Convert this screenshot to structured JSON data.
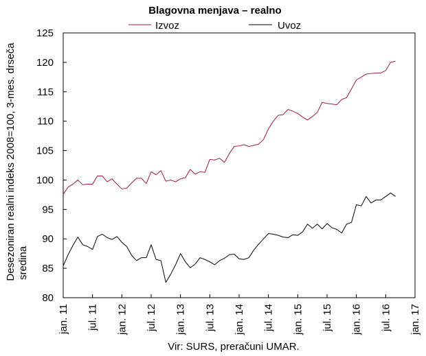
{
  "chart_data": {
    "type": "line",
    "title": "Blagovna menjava – realno",
    "ylabel_lines": [
      "Desezoniran realni indeks 2008=100, 3-mes. drseča",
      "sredina"
    ],
    "source": "Vir: SURS, preračuni UMAR.",
    "ylim": [
      80,
      125
    ],
    "yticks": [
      80,
      85,
      90,
      95,
      100,
      105,
      110,
      115,
      120,
      125
    ],
    "xlim": [
      0,
      72
    ],
    "xticks": [
      {
        "m": 0,
        "label": "jan. 11"
      },
      {
        "m": 6,
        "label": "jul. 11"
      },
      {
        "m": 12,
        "label": "jan. 12"
      },
      {
        "m": 18,
        "label": "jul. 12"
      },
      {
        "m": 24,
        "label": "jan. 13"
      },
      {
        "m": 30,
        "label": "jul. 13"
      },
      {
        "m": 36,
        "label": "jan. 14"
      },
      {
        "m": 42,
        "label": "jul. 14"
      },
      {
        "m": 48,
        "label": "jan. 15"
      },
      {
        "m": 54,
        "label": "jul. 15"
      },
      {
        "m": 60,
        "label": "jan. 16"
      },
      {
        "m": 66,
        "label": "jul. 16"
      },
      {
        "m": 72,
        "label": "jan. 17"
      }
    ],
    "grid": false,
    "legend_position": "top",
    "series": [
      {
        "name": "Izvoz",
        "color": "#a0173c",
        "values": [
          97.6,
          98.8,
          99.3,
          100.0,
          99.2,
          99.3,
          99.3,
          100.7,
          100.7,
          99.7,
          100.2,
          99.3,
          98.5,
          98.6,
          99.5,
          100.3,
          100.3,
          99.4,
          101.4,
          100.9,
          101.6,
          99.8,
          100.0,
          99.7,
          100.2,
          100.4,
          101.8,
          101.0,
          101.4,
          101.3,
          103.5,
          103.4,
          103.7,
          103.0,
          104.5,
          105.7,
          105.8,
          106.0,
          105.7,
          105.9,
          106.1,
          106.9,
          108.7,
          110.0,
          111.0,
          111.1,
          112.0,
          111.7,
          111.3,
          110.7,
          110.2,
          110.8,
          111.5,
          113.2,
          113.0,
          112.9,
          112.8,
          113.7,
          114.0,
          115.5,
          117.0,
          117.5,
          118.0,
          118.1,
          118.2,
          118.2,
          118.6,
          120.0,
          120.2
        ]
      },
      {
        "name": "Uvoz",
        "color": "#000000",
        "values": [
          85.4,
          87.3,
          88.9,
          90.3,
          89.0,
          88.7,
          88.2,
          90.4,
          90.8,
          90.2,
          89.9,
          90.4,
          89.4,
          88.7,
          87.2,
          86.3,
          86.8,
          86.8,
          89.0,
          86.5,
          86.3,
          82.6,
          84.0,
          85.6,
          87.5,
          86.1,
          85.1,
          85.7,
          86.8,
          86.5,
          86.1,
          85.6,
          86.3,
          86.7,
          87.3,
          87.4,
          86.6,
          86.5,
          86.8,
          88.1,
          89.1,
          90.0,
          90.9,
          90.8,
          90.6,
          90.3,
          90.2,
          90.7,
          90.6,
          91.2,
          92.5,
          91.8,
          92.5,
          91.7,
          92.6,
          91.9,
          91.6,
          91.0,
          92.5,
          92.8,
          95.8,
          95.6,
          97.2,
          96.1,
          96.6,
          96.6,
          97.2,
          97.8,
          97.2
        ]
      }
    ]
  }
}
